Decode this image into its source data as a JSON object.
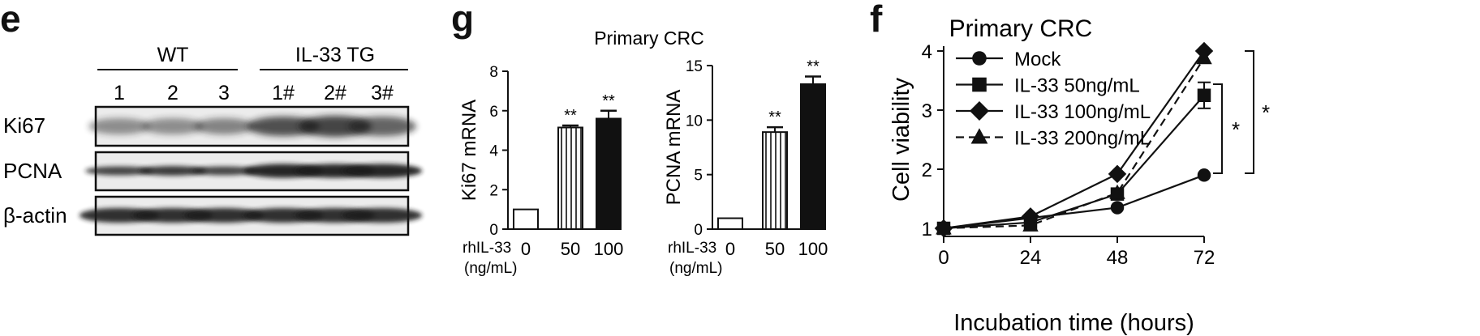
{
  "panels": {
    "e": {
      "letter": "e",
      "group_labels": [
        "WT",
        "IL-33 TG"
      ],
      "lane_labels": [
        "1",
        "2",
        "3",
        "1#",
        "2#",
        "3#"
      ],
      "row_labels": [
        "Ki67",
        "PCNA",
        "β-actin"
      ]
    },
    "g": {
      "letter": "g",
      "title": "Primary CRC",
      "treatment_label": "rhIL-33",
      "unit_label": "(ng/mL)"
    },
    "f": {
      "letter": "f"
    }
  },
  "chart_data": [
    {
      "type": "bar",
      "panel": "g-left",
      "categories": [
        "0",
        "50",
        "100"
      ],
      "values": [
        1.0,
        5.15,
        5.6
      ],
      "errors": [
        0,
        0.1,
        0.4
      ],
      "significance": [
        "",
        "**",
        "**"
      ],
      "fills": [
        "white",
        "striped",
        "black"
      ],
      "ylabel": "Ki67 mRNA",
      "ylim": [
        0,
        8
      ],
      "yticks": [
        0,
        2,
        4,
        6,
        8
      ]
    },
    {
      "type": "bar",
      "panel": "g-right",
      "categories": [
        "0",
        "50",
        "100"
      ],
      "values": [
        1.0,
        8.9,
        13.3
      ],
      "errors": [
        0,
        0.45,
        0.7
      ],
      "significance": [
        "",
        "**",
        "**"
      ],
      "fills": [
        "white",
        "striped",
        "black"
      ],
      "ylabel": "PCNA mRNA",
      "ylim": [
        0,
        15
      ],
      "yticks": [
        0,
        5,
        10,
        15
      ]
    },
    {
      "type": "line",
      "panel": "f",
      "title": "Primary CRC",
      "xlabel": "Incubation time (hours)",
      "ylabel": "Cell viability",
      "x": [
        0,
        24,
        48,
        72
      ],
      "xticks": [
        0,
        24,
        48,
        72
      ],
      "yticks": [
        1,
        2,
        3,
        4
      ],
      "xlim": [
        0,
        72
      ],
      "ylim": [
        1,
        4
      ],
      "legend_position": "top-left",
      "series": [
        {
          "name": "Mock",
          "values": [
            1.0,
            1.35,
            1.9
          ],
          "x": [
            0,
            48,
            72
          ],
          "marker": "circle",
          "dash": false,
          "error_72": 0
        },
        {
          "name": "IL-33   50ng/mL",
          "values": [
            1.0,
            1.1,
            1.58,
            3.25
          ],
          "marker": "square",
          "dash": false,
          "error_72": 0.22
        },
        {
          "name": "IL-33   100ng/mL",
          "values": [
            1.0,
            1.2,
            1.92,
            4.0
          ],
          "marker": "diamond",
          "dash": false,
          "error_72": 0
        },
        {
          "name": "IL-33   200ng/mL",
          "values": [
            1.0,
            1.05,
            1.6,
            3.88
          ],
          "marker": "triangle",
          "dash": true,
          "error_72": 0
        }
      ],
      "significance": [
        "*",
        "*"
      ]
    }
  ]
}
